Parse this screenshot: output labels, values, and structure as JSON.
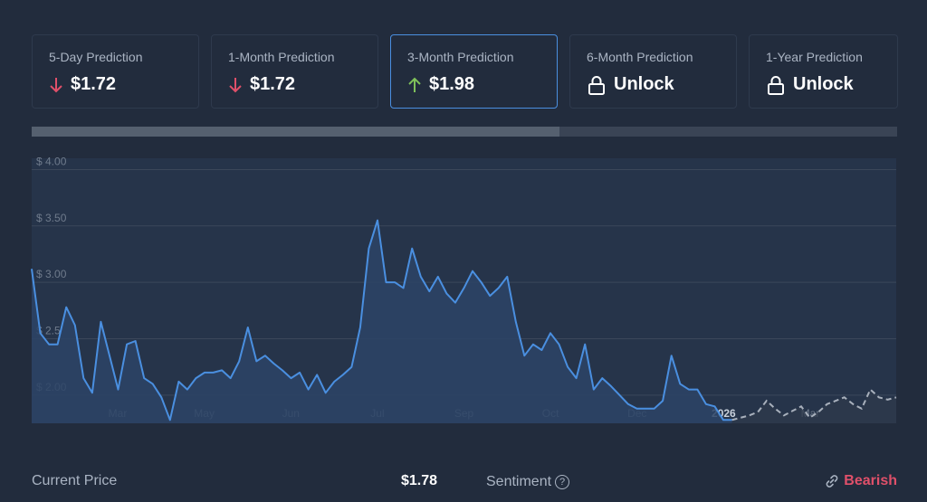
{
  "predictions": [
    {
      "label": "5-Day Prediction",
      "value": "$1.72",
      "direction": "down",
      "active": false
    },
    {
      "label": "1-Month Prediction",
      "value": "$1.72",
      "direction": "down",
      "active": false
    },
    {
      "label": "3-Month Prediction",
      "value": "$1.98",
      "direction": "up",
      "active": true
    },
    {
      "label": "6-Month Prediction",
      "value": "Unlock",
      "direction": "lock",
      "active": false
    },
    {
      "label": "1-Year Prediction",
      "value": "Unlock",
      "direction": "lock",
      "active": false
    }
  ],
  "progress_fraction": 0.61,
  "footer": {
    "current_price_label": "Current Price",
    "current_price_value": "$1.78",
    "sentiment_label": "Sentiment",
    "sentiment_value": "Bearish"
  },
  "colors": {
    "background": "#222c3d",
    "line": "#4a8fe0",
    "prediction": "#a8b0bc",
    "down": "#e0506a",
    "up": "#7fc15a",
    "bearish": "#e0506a"
  },
  "chart_data": {
    "type": "line",
    "title": "",
    "xlabel": "",
    "ylabel": "",
    "ylim": [
      1.75,
      4.1
    ],
    "yticks": [
      {
        "value": 2.0,
        "label": "$ 2.00"
      },
      {
        "value": 2.5,
        "label": "$ 2.5"
      },
      {
        "value": 3.0,
        "label": "$ 3.00"
      },
      {
        "value": 3.5,
        "label": "$ 3.50"
      },
      {
        "value": 4.0,
        "label": "$ 4.00"
      }
    ],
    "xticks": [
      "Mar",
      "May",
      "Jun",
      "Jul",
      "Sep",
      "Oct",
      "Dec",
      "2026",
      "Mar"
    ],
    "grid": true,
    "series": [
      {
        "style": "solid",
        "x": [
          0,
          2,
          4,
          6,
          8,
          10,
          12,
          14,
          16,
          18,
          20,
          22,
          24,
          26,
          28,
          30,
          32,
          34,
          36,
          38,
          40,
          42,
          44,
          46,
          48,
          50,
          52,
          54,
          56,
          58,
          60,
          62,
          64,
          66,
          68,
          70,
          72,
          74,
          76,
          78,
          80,
          82,
          84,
          86,
          88,
          90,
          92,
          94,
          96,
          98,
          100,
          102,
          104,
          106,
          108,
          110,
          112,
          114,
          116,
          118,
          120,
          122,
          124,
          126,
          128,
          130,
          132,
          134,
          136,
          138,
          140,
          142,
          144,
          146,
          148,
          150,
          152,
          154,
          156,
          158,
          160,
          162
        ],
        "y": [
          3.12,
          2.55,
          2.45,
          2.45,
          2.78,
          2.62,
          2.15,
          2.02,
          2.65,
          2.35,
          2.05,
          2.45,
          2.48,
          2.15,
          2.1,
          1.98,
          1.78,
          2.12,
          2.05,
          2.15,
          2.2,
          2.2,
          2.22,
          2.15,
          2.3,
          2.6,
          2.3,
          2.35,
          2.28,
          2.22,
          2.15,
          2.2,
          2.05,
          2.18,
          2.02,
          2.12,
          2.18,
          2.25,
          2.6,
          3.3,
          3.55,
          3.0,
          3.0,
          2.95,
          3.3,
          3.05,
          2.92,
          3.05,
          2.9,
          2.82,
          2.95,
          3.1,
          3.0,
          2.88,
          2.95,
          3.05,
          2.65,
          2.35,
          2.45,
          2.4,
          2.55,
          2.45,
          2.25,
          2.15,
          2.45,
          2.05,
          2.15,
          2.08,
          2.0,
          1.92,
          1.88,
          1.88,
          1.88,
          1.95,
          2.35,
          2.1,
          2.05,
          2.05,
          1.92,
          1.9,
          1.78,
          1.78
        ]
      },
      {
        "style": "dashed",
        "x": [
          162,
          164,
          166,
          168,
          170,
          172,
          174,
          176,
          178,
          180,
          182,
          184,
          186,
          188,
          190,
          192,
          194,
          196,
          198,
          200
        ],
        "y": [
          1.78,
          1.8,
          1.82,
          1.85,
          1.95,
          1.88,
          1.82,
          1.86,
          1.9,
          1.8,
          1.85,
          1.92,
          1.95,
          1.98,
          1.92,
          1.88,
          2.05,
          1.98,
          1.96,
          1.98
        ]
      }
    ]
  }
}
